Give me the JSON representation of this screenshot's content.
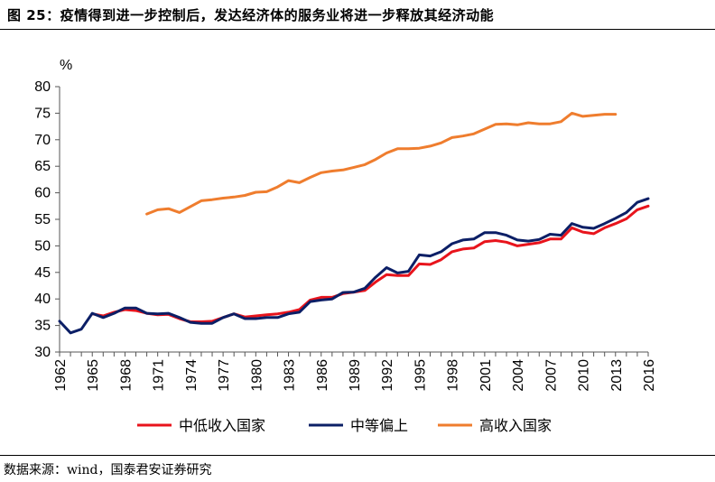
{
  "page": {
    "title": "图 25：疫情得到进一步控制后，发达经济体的服务业将进一步释放其经济动能",
    "source": "数据来源：wind，国泰君安证券研究"
  },
  "chart_data": {
    "type": "line",
    "ylabel": "%",
    "ylim": [
      30,
      80
    ],
    "yticks": [
      "30",
      "35",
      "40",
      "45",
      "50",
      "55",
      "60",
      "65",
      "70",
      "75",
      "80"
    ],
    "xlim": [
      1962,
      2016
    ],
    "xticks": [
      "1962",
      "1965",
      "1968",
      "1971",
      "1974",
      "1977",
      "1980",
      "1983",
      "1986",
      "1989",
      "1992",
      "1995",
      "1998",
      "2001",
      "2004",
      "2007",
      "2010",
      "2013",
      "2016"
    ],
    "grid": false,
    "legend": "bottom",
    "series": [
      {
        "name": "中低收入国家",
        "color": "#e8141c",
        "x": [
          1965,
          1966,
          1967,
          1968,
          1969,
          1970,
          1971,
          1972,
          1973,
          1974,
          1975,
          1976,
          1977,
          1978,
          1979,
          1980,
          1981,
          1982,
          1983,
          1984,
          1985,
          1986,
          1987,
          1988,
          1989,
          1990,
          1991,
          1992,
          1993,
          1994,
          1995,
          1996,
          1997,
          1998,
          1999,
          2000,
          2001,
          2002,
          2003,
          2004,
          2005,
          2006,
          2007,
          2008,
          2009,
          2010,
          2011,
          2012,
          2013,
          2014,
          2015,
          2016
        ],
        "values": [
          37.2,
          36.8,
          37.5,
          38.0,
          37.8,
          37.3,
          37.0,
          37.1,
          36.3,
          35.7,
          35.7,
          35.8,
          36.5,
          37.2,
          36.6,
          36.8,
          37.0,
          37.2,
          37.5,
          38.0,
          39.8,
          40.3,
          40.3,
          41.0,
          41.3,
          41.6,
          43.2,
          44.6,
          44.4,
          44.4,
          46.6,
          46.5,
          47.4,
          48.9,
          49.4,
          49.6,
          50.8,
          51.0,
          50.7,
          50.0,
          50.3,
          50.6,
          51.3,
          51.3,
          53.4,
          52.6,
          52.3,
          53.4,
          54.2,
          55.1,
          56.8,
          57.5
        ]
      },
      {
        "name": "中等偏上",
        "color": "#0c1f66",
        "x": [
          1962,
          1963,
          1964,
          1965,
          1966,
          1967,
          1968,
          1969,
          1970,
          1971,
          1972,
          1973,
          1974,
          1975,
          1976,
          1977,
          1978,
          1979,
          1980,
          1981,
          1982,
          1983,
          1984,
          1985,
          1986,
          1987,
          1988,
          1989,
          1990,
          1991,
          1992,
          1993,
          1994,
          1995,
          1996,
          1997,
          1998,
          1999,
          2000,
          2001,
          2002,
          2003,
          2004,
          2005,
          2006,
          2007,
          2008,
          2009,
          2010,
          2011,
          2012,
          2013,
          2014,
          2015,
          2016
        ],
        "values": [
          35.8,
          33.6,
          34.3,
          37.3,
          36.5,
          37.3,
          38.3,
          38.3,
          37.3,
          37.2,
          37.3,
          36.5,
          35.6,
          35.4,
          35.4,
          36.5,
          37.2,
          36.3,
          36.3,
          36.5,
          36.5,
          37.2,
          37.5,
          39.5,
          39.8,
          40.0,
          41.2,
          41.3,
          42.0,
          44.1,
          45.9,
          44.9,
          45.2,
          48.3,
          48.1,
          48.9,
          50.4,
          51.1,
          51.3,
          52.5,
          52.5,
          52.0,
          51.1,
          50.9,
          51.2,
          52.2,
          52.0,
          54.2,
          53.5,
          53.3,
          54.2,
          55.2,
          56.3,
          58.2,
          58.9
        ]
      },
      {
        "name": "高收入国家",
        "color": "#ef7d2e",
        "x": [
          1970,
          1971,
          1972,
          1973,
          1974,
          1975,
          1976,
          1977,
          1978,
          1979,
          1980,
          1981,
          1982,
          1983,
          1984,
          1985,
          1986,
          1987,
          1988,
          1989,
          1990,
          1991,
          1992,
          1993,
          1994,
          1995,
          1996,
          1997,
          1998,
          1999,
          2000,
          2001,
          2002,
          2003,
          2004,
          2005,
          2006,
          2007,
          2008,
          2009,
          2010,
          2011,
          2012,
          2013
        ],
        "values": [
          56.0,
          56.8,
          57.0,
          56.3,
          57.4,
          58.5,
          58.7,
          59.0,
          59.2,
          59.5,
          60.1,
          60.2,
          61.1,
          62.3,
          61.9,
          62.9,
          63.8,
          64.1,
          64.3,
          64.8,
          65.3,
          66.3,
          67.5,
          68.3,
          68.3,
          68.4,
          68.8,
          69.4,
          70.4,
          70.7,
          71.1,
          72.0,
          72.9,
          73.0,
          72.8,
          73.2,
          73.0,
          73.0,
          73.4,
          75.0,
          74.4,
          74.6,
          74.8,
          74.8
        ]
      }
    ]
  }
}
